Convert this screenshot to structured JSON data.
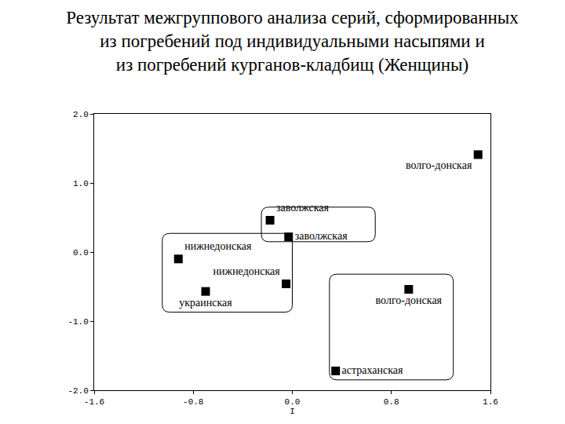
{
  "chart_data": {
    "type": "scatter",
    "title": "Результат межгруппового анализа серий, сформированных из погребений под индивидуальными насыпями и из погребений курганов-кладбищ (Женщины)",
    "x_label": "I",
    "x": [
      1.5,
      -0.18,
      -0.03,
      -0.92,
      -0.05,
      -0.7,
      0.94,
      0.35
    ],
    "values": [
      1.41,
      0.46,
      0.22,
      -0.1,
      -0.46,
      -0.57,
      -0.54,
      -1.72
    ],
    "labels": [
      "волго-донская",
      "заволжская",
      "заволжская",
      "нижнедонская",
      "нижнедонская",
      "украинская",
      "волго-донская",
      "астраханская"
    ],
    "color": "#000000",
    "marker": "square",
    "xlim": [
      -1.6,
      1.6
    ],
    "xticks": [
      -1.6,
      -0.8,
      {
        "value": 0,
        "label": "0.0"
      },
      0.8,
      1.6
    ],
    "ylim": [
      -2,
      2
    ],
    "yticks": [
      {
        "value": -2,
        "label": "-2.0"
      },
      {
        "value": -1,
        "label": "-1.0"
      },
      {
        "value": 0,
        "label": "0.0"
      },
      {
        "value": 1,
        "label": "1.0"
      },
      {
        "value": 2,
        "label": "2.0"
      }
    ],
    "grid": false
  }
}
